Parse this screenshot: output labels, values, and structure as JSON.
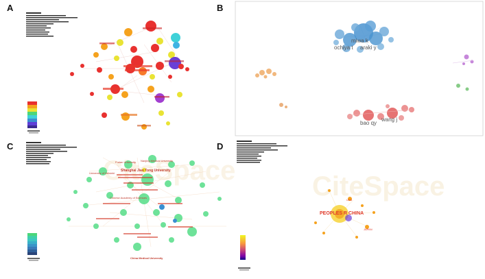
{
  "panels": [
    {
      "letter": "A"
    },
    {
      "letter": "B",
      "author_labels": [
        "miwa k",
        "ochiya t",
        "araki y",
        "bao qy",
        "wang j"
      ]
    },
    {
      "letter": "C",
      "institution_labels": [
        "Fudan University",
        "University of Helsinki",
        "Shanghai Jiao Tong University",
        "Nanjing Medical University",
        "Chinese Academy of Sciences",
        "China Medical University"
      ]
    },
    {
      "letter": "D",
      "country_labels": [
        "PEOPLES R CHINA",
        "JAPAN",
        "USA"
      ]
    }
  ],
  "watermark": "CiteSpace",
  "colors": {
    "red": "#e8312f",
    "orange": "#f5a21e",
    "yellow": "#e9e334",
    "green": "#4cd67a",
    "teal": "#3fd1b0",
    "blue": "#3a8fd1",
    "purple": "#8c3fc9",
    "grey": "#bdbdbd"
  }
}
